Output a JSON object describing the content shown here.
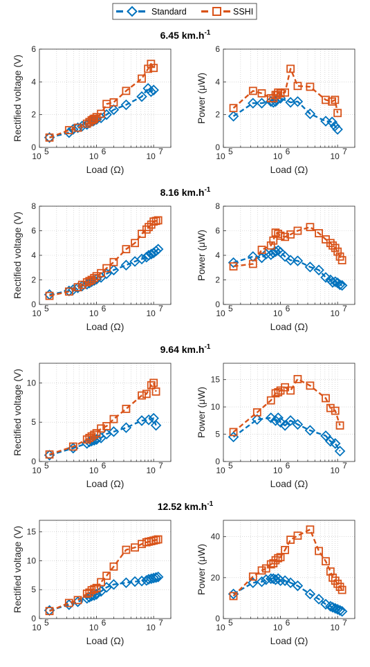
{
  "colors": {
    "standard": "#0072BD",
    "sshi": "#D95319",
    "axis": "#262626",
    "grid": "#bfbfbf"
  },
  "legend": {
    "items": [
      "Standard",
      "SSHI"
    ]
  },
  "chart_data": [
    {
      "type": "line",
      "title": "6.45 km.h",
      "title_sup": "-1",
      "xlabel": "Load (Ω)",
      "ylabel": "Rectified voltage (V)",
      "xscale": "log",
      "xlim": [
        100000,
        20000000
      ],
      "ylim": [
        0,
        6
      ],
      "yticks": [
        0,
        2,
        4,
        6
      ],
      "xticks": [
        {
          "base": "10",
          "exp": "5"
        },
        {
          "base": "10",
          "exp": "6"
        },
        {
          "base": "10",
          "exp": "7"
        }
      ],
      "grid": true,
      "series": [
        {
          "name": "Standard",
          "x": [
            150000,
            330000,
            390000,
            470000,
            560000,
            680000,
            750000,
            820000,
            870000,
            910000,
            1000000,
            1200000,
            1500000,
            2000000,
            3300000,
            6200000,
            8000000,
            9000000,
            10000000
          ],
          "y": [
            0.6,
            0.9,
            1.1,
            1.2,
            1.3,
            1.4,
            1.5,
            1.6,
            1.6,
            1.65,
            1.7,
            1.8,
            2.0,
            2.3,
            2.6,
            3.1,
            3.6,
            3.4,
            3.5
          ]
        },
        {
          "name": "SSHI",
          "x": [
            150000,
            330000,
            470000,
            680000,
            750000,
            820000,
            870000,
            910000,
            1000000,
            1200000,
            1500000,
            2000000,
            3300000,
            6200000,
            8000000,
            9000000,
            10000000
          ],
          "y": [
            0.6,
            1.05,
            1.2,
            1.45,
            1.55,
            1.65,
            1.7,
            1.75,
            1.85,
            2.05,
            2.65,
            2.75,
            3.45,
            4.2,
            4.8,
            5.1,
            4.85
          ]
        }
      ]
    },
    {
      "type": "line",
      "title": "",
      "xlabel": "Load (Ω)",
      "ylabel": "Power (μW)",
      "xscale": "log",
      "xlim": [
        100000,
        20000000
      ],
      "ylim": [
        0,
        6
      ],
      "yticks": [
        0,
        2,
        4,
        6
      ],
      "xticks": [
        {
          "base": "10",
          "exp": "5"
        },
        {
          "base": "10",
          "exp": "6"
        },
        {
          "base": "10",
          "exp": "7"
        }
      ],
      "grid": true,
      "series": [
        {
          "name": "Standard",
          "x": [
            150000,
            330000,
            470000,
            680000,
            750000,
            820000,
            870000,
            1000000,
            1500000,
            2000000,
            3300000,
            6200000,
            8000000,
            9000000,
            10000000
          ],
          "y": [
            1.9,
            2.7,
            2.7,
            2.8,
            2.75,
            2.8,
            2.9,
            3.0,
            2.75,
            2.8,
            2.05,
            1.6,
            1.55,
            1.3,
            1.1
          ]
        },
        {
          "name": "SSHI",
          "x": [
            150000,
            330000,
            470000,
            680000,
            750000,
            820000,
            870000,
            910000,
            1000000,
            1200000,
            1500000,
            2000000,
            3300000,
            6200000,
            8000000,
            9000000,
            10000000
          ],
          "y": [
            2.4,
            3.45,
            3.3,
            3.0,
            3.0,
            3.2,
            3.2,
            3.35,
            3.3,
            3.35,
            4.8,
            3.75,
            3.7,
            2.9,
            2.8,
            2.9,
            2.1
          ]
        }
      ]
    },
    {
      "type": "line",
      "title": "8.16 km.h",
      "title_sup": "-1",
      "xlabel": "Load (Ω)",
      "ylabel": "Rectified voltage (V)",
      "xscale": "log",
      "xlim": [
        100000,
        20000000
      ],
      "ylim": [
        0,
        8
      ],
      "yticks": [
        0,
        2,
        4,
        6,
        8
      ],
      "xticks": [
        {
          "base": "10",
          "exp": "5"
        },
        {
          "base": "10",
          "exp": "6"
        },
        {
          "base": "10",
          "exp": "7"
        }
      ],
      "grid": true,
      "series": [
        {
          "name": "Standard",
          "x": [
            150000,
            330000,
            390000,
            470000,
            560000,
            680000,
            750000,
            820000,
            910000,
            1000000,
            1200000,
            1500000,
            2000000,
            3300000,
            4700000,
            6200000,
            7500000,
            8200000,
            9100000,
            10000000,
            11000000,
            12000000
          ],
          "y": [
            0.8,
            1.1,
            1.2,
            1.35,
            1.5,
            1.65,
            1.75,
            1.85,
            1.95,
            2.05,
            2.2,
            2.5,
            2.8,
            3.2,
            3.5,
            3.7,
            3.85,
            4.0,
            4.1,
            4.2,
            4.35,
            4.5
          ]
        },
        {
          "name": "SSHI",
          "x": [
            150000,
            330000,
            470000,
            560000,
            680000,
            750000,
            820000,
            910000,
            1000000,
            1200000,
            1500000,
            2000000,
            3300000,
            4700000,
            6200000,
            7500000,
            8200000,
            9100000,
            10000000,
            11000000,
            12000000
          ],
          "y": [
            0.7,
            1.05,
            1.4,
            1.6,
            1.8,
            1.9,
            2.0,
            2.15,
            2.3,
            2.55,
            2.95,
            3.45,
            4.5,
            5.0,
            5.75,
            6.1,
            6.3,
            6.5,
            6.75,
            6.8,
            6.85
          ]
        }
      ]
    },
    {
      "type": "line",
      "title": "",
      "xlabel": "Load (Ω)",
      "ylabel": "Power (μW)",
      "xscale": "log",
      "xlim": [
        100000,
        20000000
      ],
      "ylim": [
        0,
        8
      ],
      "yticks": [
        0,
        2,
        4,
        6,
        8
      ],
      "xticks": [
        {
          "base": "10",
          "exp": "5"
        },
        {
          "base": "10",
          "exp": "6"
        },
        {
          "base": "10",
          "exp": "7"
        }
      ],
      "grid": true,
      "series": [
        {
          "name": "Standard",
          "x": [
            150000,
            330000,
            470000,
            560000,
            680000,
            750000,
            820000,
            910000,
            1000000,
            1200000,
            1500000,
            2000000,
            3300000,
            4700000,
            6200000,
            7500000,
            8200000,
            9100000,
            10000000,
            11000000,
            12000000
          ],
          "y": [
            3.4,
            3.9,
            3.8,
            4.1,
            4.05,
            4.2,
            4.3,
            4.4,
            4.25,
            3.9,
            3.6,
            3.55,
            3.05,
            2.8,
            2.2,
            2.0,
            1.8,
            1.85,
            1.75,
            1.6,
            1.55
          ]
        },
        {
          "name": "SSHI",
          "x": [
            150000,
            330000,
            470000,
            680000,
            750000,
            820000,
            910000,
            1000000,
            1200000,
            1500000,
            2000000,
            3300000,
            4700000,
            6200000,
            7500000,
            8200000,
            9100000,
            10000000,
            11000000,
            12000000
          ],
          "y": [
            3.1,
            3.3,
            4.45,
            4.8,
            5.2,
            5.85,
            5.75,
            5.6,
            5.5,
            5.7,
            6.0,
            6.3,
            5.8,
            5.3,
            5.0,
            4.8,
            4.6,
            4.3,
            3.9,
            3.6
          ]
        }
      ]
    },
    {
      "type": "line",
      "title": "9.64 km.h",
      "title_sup": "-1",
      "xlabel": "Load (Ω)",
      "ylabel": "Rectified voltage (V)",
      "xscale": "log",
      "xlim": [
        100000,
        20000000
      ],
      "ylim": [
        0,
        12.5
      ],
      "yticks": [
        0,
        5,
        10
      ],
      "xticks": [
        {
          "base": "10",
          "exp": "5"
        },
        {
          "base": "10",
          "exp": "6"
        },
        {
          "base": "10",
          "exp": "7"
        }
      ],
      "grid": true,
      "series": [
        {
          "name": "Standard",
          "x": [
            150000,
            390000,
            680000,
            750000,
            820000,
            910000,
            1000000,
            1200000,
            1500000,
            2000000,
            3300000,
            6200000,
            8200000,
            10000000,
            11000000
          ],
          "y": [
            0.8,
            1.7,
            2.3,
            2.5,
            2.6,
            2.7,
            2.8,
            3.0,
            3.5,
            3.8,
            4.3,
            5.2,
            5.3,
            5.5,
            4.6
          ]
        },
        {
          "name": "SSHI",
          "x": [
            150000,
            390000,
            680000,
            750000,
            820000,
            910000,
            1000000,
            1200000,
            1500000,
            2000000,
            3300000,
            6200000,
            7500000,
            9100000,
            10000000,
            11000000
          ],
          "y": [
            0.9,
            1.9,
            2.8,
            3.0,
            3.2,
            3.4,
            3.6,
            4.2,
            4.5,
            5.4,
            6.7,
            8.4,
            8.6,
            9.7,
            10.0,
            8.9
          ]
        }
      ]
    },
    {
      "type": "line",
      "title": "",
      "xlabel": "Load (Ω)",
      "ylabel": "Power (μW)",
      "xscale": "log",
      "xlim": [
        100000,
        20000000
      ],
      "ylim": [
        0,
        18
      ],
      "yticks": [
        0,
        5,
        10,
        15
      ],
      "xticks": [
        {
          "base": "10",
          "exp": "5"
        },
        {
          "base": "10",
          "exp": "6"
        },
        {
          "base": "10",
          "exp": "7"
        }
      ],
      "grid": true,
      "series": [
        {
          "name": "Standard",
          "x": [
            150000,
            390000,
            680000,
            820000,
            910000,
            1000000,
            1200000,
            1500000,
            2000000,
            3300000,
            6200000,
            7500000,
            9100000,
            11000000
          ],
          "y": [
            4.5,
            7.7,
            8.0,
            7.5,
            8.0,
            7.2,
            6.6,
            7.5,
            6.8,
            5.7,
            4.7,
            3.7,
            3.3,
            1.9
          ]
        },
        {
          "name": "SSHI",
          "x": [
            150000,
            390000,
            680000,
            820000,
            910000,
            1000000,
            1200000,
            1500000,
            2000000,
            3300000,
            6200000,
            7500000,
            9100000,
            11000000
          ],
          "y": [
            5.4,
            9.0,
            11.2,
            12.5,
            12.7,
            13.0,
            13.6,
            13.0,
            15.1,
            13.9,
            11.6,
            9.8,
            9.3,
            6.6
          ]
        }
      ]
    },
    {
      "type": "line",
      "title": "12.52 km.h",
      "title_sup": "-1",
      "xlabel": "Load (Ω)",
      "ylabel": "Rectified voltage (V)",
      "xscale": "log",
      "xlim": [
        100000,
        20000000
      ],
      "ylim": [
        0,
        17
      ],
      "yticks": [
        0,
        5,
        10,
        15
      ],
      "xticks": [
        {
          "base": "10",
          "exp": "5"
        },
        {
          "base": "10",
          "exp": "6"
        },
        {
          "base": "10",
          "exp": "7"
        }
      ],
      "grid": true,
      "series": [
        {
          "name": "Standard",
          "x": [
            150000,
            330000,
            470000,
            680000,
            750000,
            820000,
            910000,
            1000000,
            1200000,
            1500000,
            2000000,
            3300000,
            4700000,
            6200000,
            7500000,
            8200000,
            9100000,
            10000000,
            11000000,
            12000000
          ],
          "y": [
            1.4,
            2.4,
            2.9,
            3.5,
            3.7,
            3.9,
            4.0,
            4.2,
            4.7,
            5.4,
            5.9,
            6.2,
            6.4,
            6.5,
            6.6,
            6.8,
            6.9,
            7.0,
            7.1,
            7.2
          ]
        },
        {
          "name": "SSHI",
          "x": [
            150000,
            330000,
            470000,
            680000,
            750000,
            820000,
            910000,
            1000000,
            1200000,
            1500000,
            2000000,
            3300000,
            4700000,
            6200000,
            7500000,
            8200000,
            9100000,
            10000000,
            11000000,
            12000000
          ],
          "y": [
            1.3,
            2.7,
            3.2,
            4.3,
            4.5,
            4.9,
            5.1,
            5.3,
            6.3,
            7.4,
            9.0,
            11.9,
            12.3,
            12.9,
            13.2,
            13.3,
            13.4,
            13.5,
            13.6,
            13.7
          ]
        }
      ]
    },
    {
      "type": "line",
      "title": "",
      "xlabel": "Load (Ω)",
      "ylabel": "Power (μW)",
      "xscale": "log",
      "xlim": [
        100000,
        20000000
      ],
      "ylim": [
        0,
        48
      ],
      "yticks": [
        0,
        20,
        40
      ],
      "xticks": [
        {
          "base": "10",
          "exp": "5"
        },
        {
          "base": "10",
          "exp": "6"
        },
        {
          "base": "10",
          "exp": "7"
        }
      ],
      "grid": true,
      "series": [
        {
          "name": "Standard",
          "x": [
            150000,
            330000,
            470000,
            560000,
            680000,
            750000,
            820000,
            910000,
            1000000,
            1200000,
            1500000,
            2000000,
            3300000,
            4700000,
            6200000,
            7500000,
            8200000,
            9100000,
            10000000,
            11000000,
            12000000
          ],
          "y": [
            12.0,
            17.5,
            18.0,
            19.0,
            19.5,
            19.5,
            19.0,
            19.5,
            18.5,
            18.5,
            17.5,
            16.0,
            12.0,
            9.5,
            7.0,
            6.0,
            5.5,
            5.0,
            4.5,
            4.0,
            3.5
          ]
        },
        {
          "name": "SSHI",
          "x": [
            150000,
            330000,
            470000,
            560000,
            680000,
            750000,
            820000,
            910000,
            1000000,
            1200000,
            1500000,
            2000000,
            3300000,
            4700000,
            6200000,
            7500000,
            8200000,
            9100000,
            10000000,
            11000000,
            12000000
          ],
          "y": [
            11.0,
            20.5,
            23.5,
            24.5,
            26.5,
            27.0,
            28.5,
            29.5,
            30.0,
            33.5,
            38.5,
            40.5,
            43.5,
            33.0,
            28.0,
            23.0,
            20.0,
            18.5,
            17.0,
            15.5,
            14.0
          ]
        }
      ]
    }
  ]
}
